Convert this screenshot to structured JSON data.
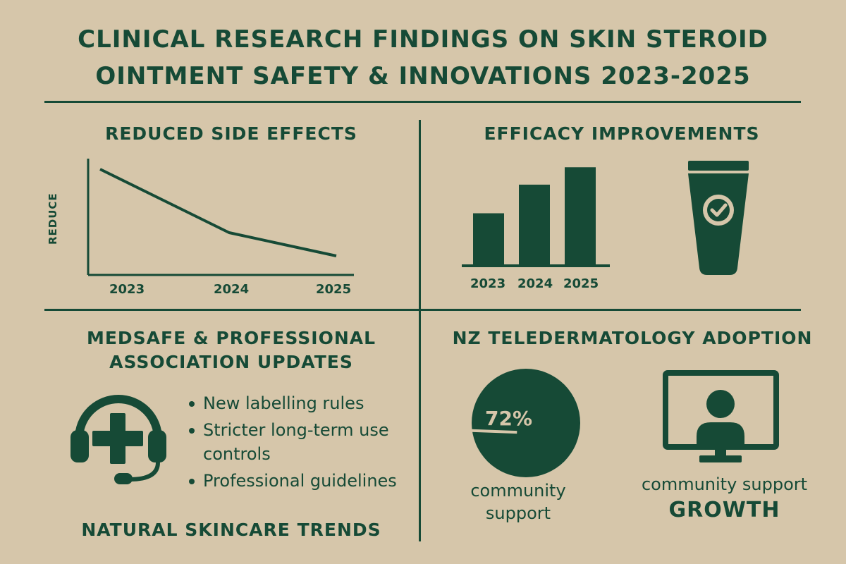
{
  "title": {
    "line1": "Clinical Research Findings on Skin Steroid",
    "line2": "Ointment Safety & Innovations 2023-2025"
  },
  "colors": {
    "background": "#d6c6aa",
    "accent": "#164a36"
  },
  "side_effects": {
    "heading": "Reduced Side Effects",
    "y_label": "REDUCE",
    "x_labels": [
      "2023",
      "2024",
      "2025"
    ]
  },
  "efficacy": {
    "heading": "Efficacy Improvements",
    "x_labels": [
      "2023",
      "2024",
      "2025"
    ],
    "icon": "ointment-tube-check-icon"
  },
  "medsafe": {
    "heading_line1": "Medsafe & Professional",
    "heading_line2": "Association Updates",
    "icon": "headset-medical-cross-icon",
    "bullets": [
      "New labelling rules",
      "Stricter long-term use controls",
      "Professional guidelines"
    ],
    "footer_heading": "Natural Skincare Trends"
  },
  "teledermatology": {
    "heading": "NZ Teledermatology Adoption",
    "percent_label": "72%",
    "percent_value": 72,
    "pie_caption_line1": "community",
    "pie_caption_line2": "support",
    "monitor_icon": "monitor-person-icon",
    "monitor_caption": "community support",
    "monitor_emphasis": "GROWTH"
  },
  "chart_data": [
    {
      "type": "line",
      "title": "Reduced Side Effects",
      "xlabel": "",
      "ylabel": "REDUCE",
      "x": [
        "2023",
        "2024",
        "2025"
      ],
      "series": [
        {
          "values": [
            100,
            40,
            18
          ]
        }
      ],
      "ylim": [
        0,
        110
      ],
      "grid": false
    },
    {
      "type": "bar",
      "title": "Efficacy Improvements",
      "categories": [
        "2023",
        "2024",
        "2025"
      ],
      "values": [
        50,
        78,
        95
      ],
      "ylim": [
        0,
        100
      ],
      "grid": false
    }
  ]
}
